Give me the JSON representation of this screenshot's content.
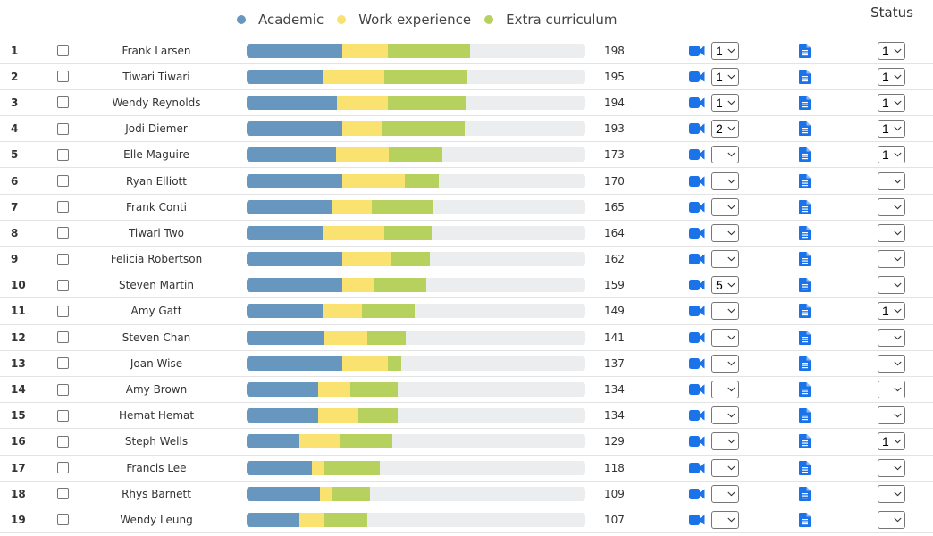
{
  "legend": [
    {
      "label": "Academic",
      "color": "#6797bf"
    },
    {
      "label": "Work experience",
      "color": "#f9e270"
    },
    {
      "label": "Extra curriculum",
      "color": "#b7d15e"
    }
  ],
  "headers": {
    "status": "Status"
  },
  "colors": {
    "track": "#ebedef",
    "icon_blue": "#1a73e8"
  },
  "chart_data": {
    "type": "bar",
    "orientation": "horizontal-stacked",
    "xlim": [
      0,
      300
    ],
    "series": [
      {
        "name": "Academic",
        "values": [
          85,
          67,
          80,
          85,
          79,
          85,
          75,
          67,
          85,
          85,
          67,
          68,
          85,
          63,
          63,
          47,
          58,
          65,
          47
        ]
      },
      {
        "name": "Work experience",
        "values": [
          40,
          55,
          45,
          35,
          47,
          55,
          36,
          55,
          43,
          28,
          35,
          39,
          40,
          29,
          36,
          36,
          10,
          10,
          22
        ]
      },
      {
        "name": "Extra curriculum",
        "values": [
          73,
          73,
          69,
          73,
          47,
          30,
          54,
          42,
          34,
          46,
          47,
          34,
          12,
          42,
          35,
          46,
          50,
          34,
          38
        ]
      }
    ],
    "categories": [
      "Frank Larsen",
      "Tiwari Tiwari",
      "Wendy Reynolds",
      "Jodi Diemer",
      "Elle Maguire",
      "Ryan Elliott",
      "Frank Conti",
      "Tiwari Two",
      "Felicia Robertson",
      "Steven Martin",
      "Amy Gatt",
      "Steven Chan",
      "Joan Wise",
      "Amy Brown",
      "Hemat Hemat",
      "Steph Wells",
      "Francis Lee",
      "Rhys Barnett",
      "Wendy Leung"
    ]
  },
  "rows": [
    {
      "index": "1",
      "name": "Frank Larsen",
      "score": "198",
      "interview": "1",
      "status": "1",
      "academic": 85,
      "work": 40,
      "extra": 73
    },
    {
      "index": "2",
      "name": "Tiwari Tiwari",
      "score": "195",
      "interview": "1",
      "status": "1",
      "academic": 67,
      "work": 55,
      "extra": 73
    },
    {
      "index": "3",
      "name": "Wendy Reynolds",
      "score": "194",
      "interview": "1",
      "status": "1",
      "academic": 80,
      "work": 45,
      "extra": 69
    },
    {
      "index": "4",
      "name": "Jodi Diemer",
      "score": "193",
      "interview": "2",
      "status": "1",
      "academic": 85,
      "work": 35,
      "extra": 73
    },
    {
      "index": "5",
      "name": "Elle Maguire",
      "score": "173",
      "interview": "",
      "status": "1",
      "academic": 79,
      "work": 47,
      "extra": 47
    },
    {
      "index": "6",
      "name": "Ryan Elliott",
      "score": "170",
      "interview": "",
      "status": "",
      "academic": 85,
      "work": 55,
      "extra": 30
    },
    {
      "index": "7",
      "name": "Frank Conti",
      "score": "165",
      "interview": "",
      "status": "",
      "academic": 75,
      "work": 36,
      "extra": 54
    },
    {
      "index": "8",
      "name": "Tiwari Two",
      "score": "164",
      "interview": "",
      "status": "",
      "academic": 67,
      "work": 55,
      "extra": 42
    },
    {
      "index": "9",
      "name": "Felicia Robertson",
      "score": "162",
      "interview": "",
      "status": "",
      "academic": 85,
      "work": 43,
      "extra": 34
    },
    {
      "index": "10",
      "name": "Steven Martin",
      "score": "159",
      "interview": "5",
      "status": "",
      "academic": 85,
      "work": 28,
      "extra": 46
    },
    {
      "index": "11",
      "name": "Amy Gatt",
      "score": "149",
      "interview": "",
      "status": "1",
      "academic": 67,
      "work": 35,
      "extra": 47
    },
    {
      "index": "12",
      "name": "Steven Chan",
      "score": "141",
      "interview": "",
      "status": "",
      "academic": 68,
      "work": 39,
      "extra": 34
    },
    {
      "index": "13",
      "name": "Joan Wise",
      "score": "137",
      "interview": "",
      "status": "",
      "academic": 85,
      "work": 40,
      "extra": 12
    },
    {
      "index": "14",
      "name": "Amy Brown",
      "score": "134",
      "interview": "",
      "status": "",
      "academic": 63,
      "work": 29,
      "extra": 42
    },
    {
      "index": "15",
      "name": "Hemat Hemat",
      "score": "134",
      "interview": "",
      "status": "",
      "academic": 63,
      "work": 36,
      "extra": 35
    },
    {
      "index": "16",
      "name": "Steph Wells",
      "score": "129",
      "interview": "",
      "status": "1",
      "academic": 47,
      "work": 36,
      "extra": 46
    },
    {
      "index": "17",
      "name": "Francis Lee",
      "score": "118",
      "interview": "",
      "status": "",
      "academic": 58,
      "work": 10,
      "extra": 50
    },
    {
      "index": "18",
      "name": "Rhys Barnett",
      "score": "109",
      "interview": "",
      "status": "",
      "academic": 65,
      "work": 10,
      "extra": 34
    },
    {
      "index": "19",
      "name": "Wendy Leung",
      "score": "107",
      "interview": "",
      "status": "",
      "academic": 47,
      "work": 22,
      "extra": 38
    }
  ]
}
